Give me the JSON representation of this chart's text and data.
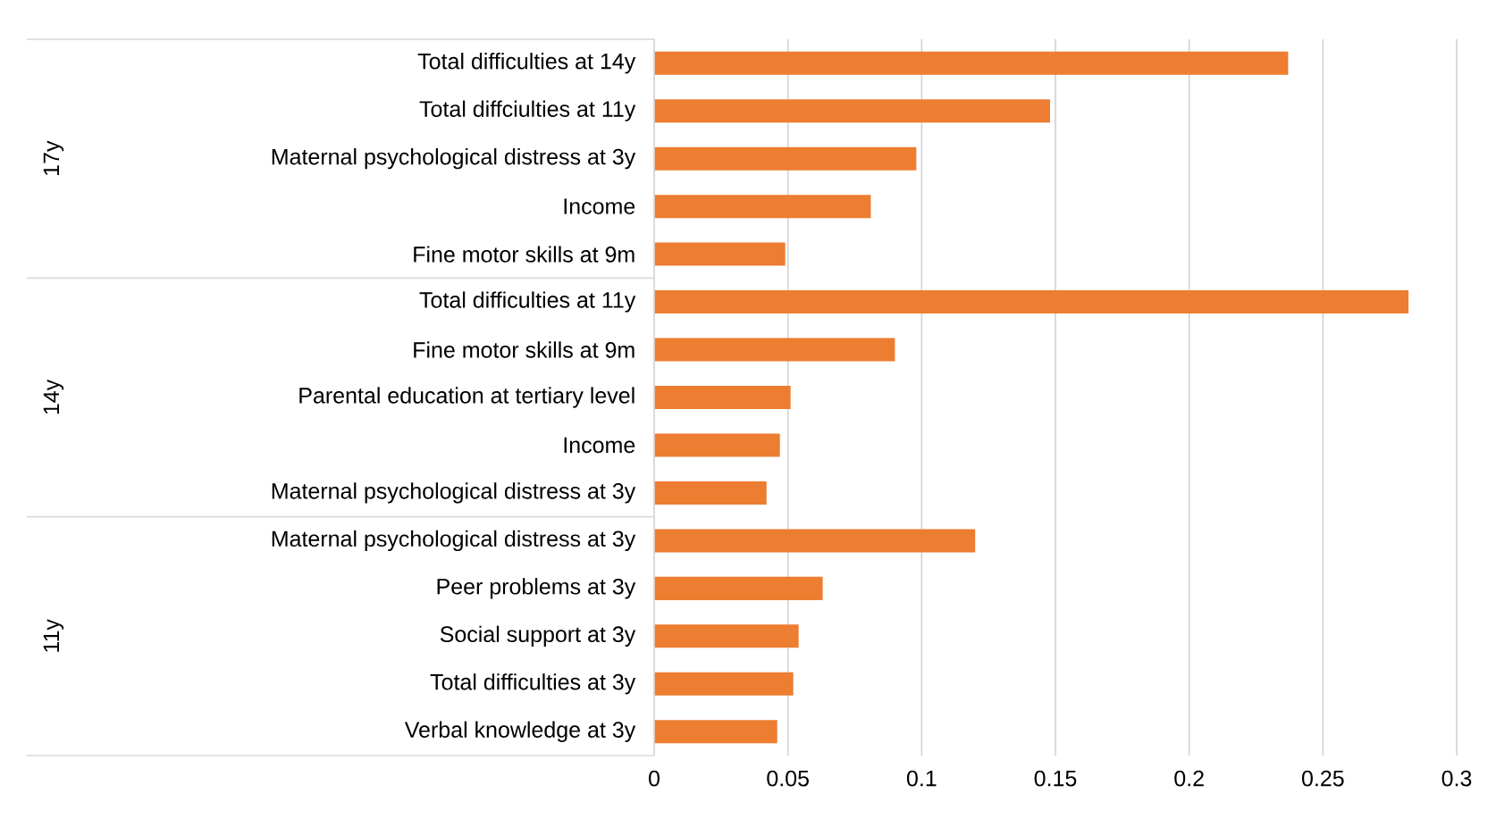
{
  "chart_data": {
    "type": "bar",
    "orientation": "horizontal",
    "categories": [
      "Total difficulties at 14y",
      "Total diffciulties at 11y",
      "Maternal psychological distress at 3y",
      "Income",
      "Fine motor skills at 9m",
      "Total difficulties at 11y",
      "Fine motor skills at 9m",
      "Parental education at tertiary level",
      "Income",
      "Maternal psychological distress at 3y",
      "Maternal psychological distress at 3y",
      "Peer problems at 3y",
      "Social support at 3y",
      "Total difficulties at 3y",
      "Verbal knowledge at 3y"
    ],
    "values": [
      0.237,
      0.148,
      0.098,
      0.081,
      0.049,
      0.282,
      0.09,
      0.051,
      0.047,
      0.042,
      0.12,
      0.063,
      0.054,
      0.052,
      0.046
    ],
    "color": "#ed7d31",
    "xlim": [
      0,
      0.3
    ],
    "xticks": [
      0,
      0.05,
      0.1,
      0.15,
      0.2,
      0.25,
      0.3
    ],
    "grid": "x",
    "annotations": [
      "17y",
      "14y",
      "11y"
    ]
  }
}
